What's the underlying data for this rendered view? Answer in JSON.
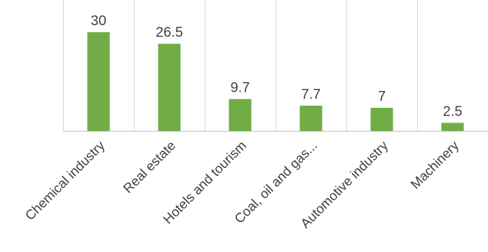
{
  "chart_data": {
    "type": "bar",
    "title": "",
    "xlabel": "",
    "ylabel": "",
    "categories": [
      "Chemical industry",
      "Real estate",
      "Hotels and tourism",
      "Coal, oil and gas...",
      "Automotive industry",
      "Machinery"
    ],
    "values": [
      30,
      26.5,
      9.7,
      7.7,
      7,
      2.5
    ],
    "data_labels": [
      "30",
      "26.5",
      "9.7",
      "7.7",
      "7",
      "2.5"
    ],
    "ylim": [
      0,
      30
    ],
    "grid": true,
    "legend": "none",
    "bar_color": "#70AD47"
  }
}
